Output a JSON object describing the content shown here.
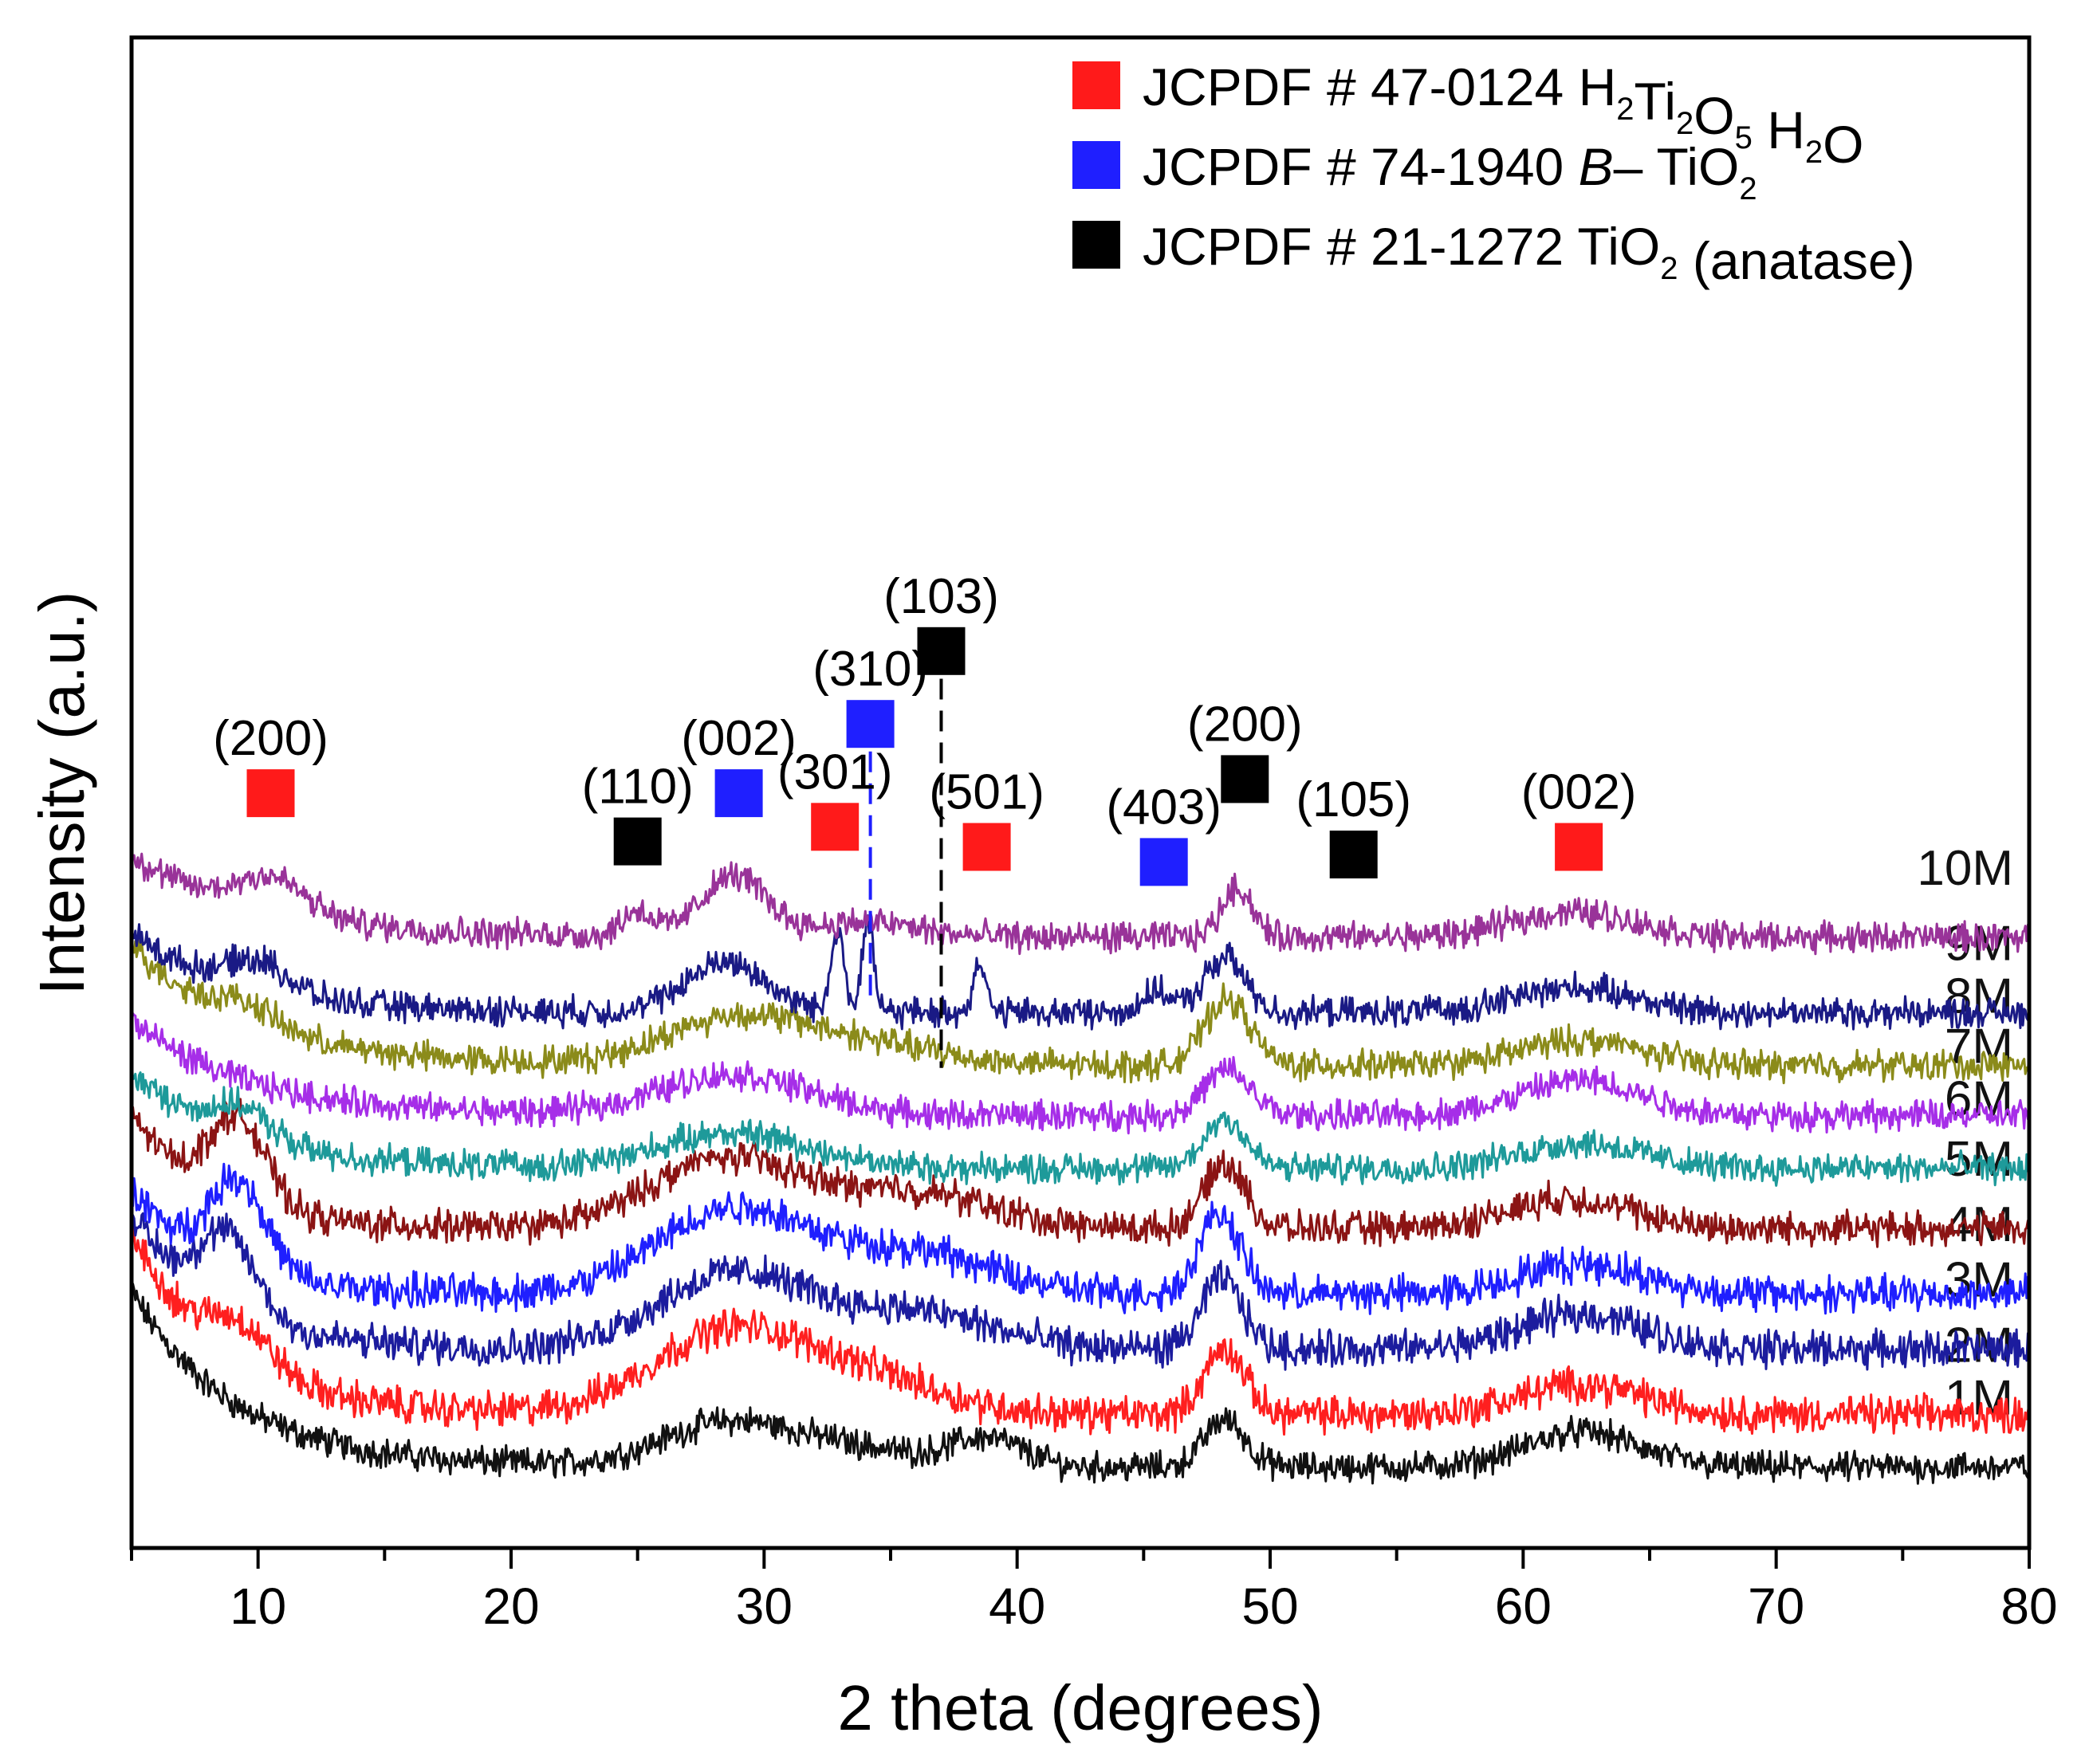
{
  "chart_data": {
    "type": "line",
    "title": "",
    "xlabel": "2 theta (degrees)",
    "ylabel": "Intensity (a.u.)",
    "xlim": [
      5,
      80
    ],
    "xticks": [
      10,
      20,
      30,
      40,
      50,
      60,
      70,
      80
    ],
    "yticks_shown": false,
    "grid": false,
    "legend_position": "top-right",
    "legend": [
      {
        "marker_color": "#ff1a1a",
        "text_color": "#ff1a1a",
        "parts": [
          [
            "JCPDF # 47-0124 H",
            ""
          ],
          [
            "2",
            "sub"
          ],
          [
            "Ti",
            ""
          ],
          [
            "2",
            "sub"
          ],
          [
            "O",
            ""
          ],
          [
            "5",
            "sub"
          ],
          [
            " H",
            ""
          ],
          [
            "2",
            "sub"
          ],
          [
            "O",
            ""
          ]
        ]
      },
      {
        "marker_color": "#1f1fff",
        "text_color": "#1f1fff",
        "parts": [
          [
            "JCPDF # 74-1940 ",
            ""
          ],
          [
            "B",
            "italic"
          ],
          [
            "– TiO",
            ""
          ],
          [
            "2",
            "sub"
          ]
        ]
      },
      {
        "marker_color": "#000000",
        "text_color": "#000000",
        "parts": [
          [
            "JCPDF # 21-1272 TiO",
            ""
          ],
          [
            "2",
            "sub"
          ],
          [
            " (anatase)",
            ""
          ]
        ]
      }
    ],
    "phase_colors": {
      "h2ti2o5": "#ff1a1a",
      "b_tio2": "#1f1fff",
      "anatase": "#000000"
    },
    "peak_markers": [
      {
        "phase": "h2ti2o5",
        "label": "(200)",
        "x": 10.5,
        "level": 2.92
      },
      {
        "phase": "anatase",
        "label": "(110)",
        "x": 25.0,
        "level": 1.96
      },
      {
        "phase": "b_tio2",
        "label": "(002)",
        "x": 29.0,
        "level": 2.92
      },
      {
        "phase": "h2ti2o5",
        "label": "(301)",
        "x": 32.8,
        "level": 2.25
      },
      {
        "phase": "b_tio2",
        "label": "(310)",
        "x": 34.2,
        "level": 4.3
      },
      {
        "phase": "anatase",
        "label": "(103)",
        "x": 37.0,
        "level": 5.75
      },
      {
        "phase": "h2ti2o5",
        "label": "(501)",
        "x": 38.8,
        "level": 1.85
      },
      {
        "phase": "b_tio2",
        "label": "(403)",
        "x": 45.8,
        "level": 1.55
      },
      {
        "phase": "anatase",
        "label": "(200)",
        "x": 49.0,
        "level": 3.2
      },
      {
        "phase": "anatase",
        "label": "(105)",
        "x": 53.3,
        "level": 1.7
      },
      {
        "phase": "h2ti2o5",
        "label": "(002)",
        "x": 62.2,
        "level": 1.85
      }
    ],
    "dashed_reference_lines": [
      {
        "phase": "b_tio2",
        "x": 34.2,
        "from_level": 3.75,
        "to_level": -1.3
      },
      {
        "phase": "anatase",
        "x": 37.0,
        "from_level": 5.2,
        "to_level": -2.55
      }
    ],
    "series": [
      {
        "name": "1M",
        "color": "#111111",
        "offset": 0.0,
        "start": 3.5,
        "decay_tau": 4.0,
        "noise": 0.45,
        "baseline": 0.15,
        "low_peak": [],
        "peaks": [
          [
            28.5,
            0.85,
            2.6
          ],
          [
            33.5,
            0.35,
            2.6
          ],
          [
            38.8,
            0.55,
            1.4
          ],
          [
            48.2,
            0.95,
            0.8
          ],
          [
            62.3,
            0.7,
            2.2
          ]
        ]
      },
      {
        "name": "2M",
        "color": "#ff1f1f",
        "offset": 1.15,
        "start": 3.6,
        "decay_tau": 3.6,
        "noise": 0.55,
        "baseline": 0.05,
        "low_peak": [
          9.3,
          0.8,
          1.2
        ],
        "peaks": [
          [
            28.5,
            1.6,
            3.0
          ],
          [
            34.0,
            0.7,
            3.0
          ],
          [
            48.2,
            1.3,
            0.8
          ],
          [
            62.3,
            0.6,
            2.4
          ]
        ]
      },
      {
        "name": "3M",
        "color": "#1c1c9e",
        "offset": 2.45,
        "start": 2.7,
        "decay_tau": 3.2,
        "noise": 0.55,
        "baseline": 0.05,
        "low_peak": [
          8.8,
          1.5,
          1.1
        ],
        "peaks": [
          [
            28.8,
            1.5,
            3.0
          ],
          [
            36.0,
            0.7,
            3.0
          ],
          [
            48.1,
            1.4,
            0.8
          ],
          [
            62.3,
            0.7,
            2.4
          ]
        ]
      },
      {
        "name": "4M",
        "color": "#1f1fff",
        "offset": 3.55,
        "start": 2.1,
        "decay_tau": 3.0,
        "noise": 0.55,
        "baseline": 0.05,
        "low_peak": [
          9.2,
          1.8,
          1.1
        ],
        "peaks": [
          [
            28.8,
            1.7,
            3.0
          ],
          [
            36.0,
            0.8,
            3.0
          ],
          [
            48.0,
            1.6,
            0.8
          ],
          [
            62.3,
            0.6,
            2.4
          ]
        ]
      },
      {
        "name": "5M",
        "color": "#8b1414",
        "offset": 4.85,
        "start": 2.3,
        "decay_tau": 3.0,
        "noise": 0.5,
        "baseline": 0.05,
        "low_peak": [
          9.2,
          1.7,
          1.1
        ],
        "peaks": [
          [
            28.5,
            1.4,
            3.0
          ],
          [
            36.0,
            0.7,
            3.0
          ],
          [
            48.2,
            1.3,
            0.8
          ],
          [
            61.8,
            0.6,
            2.4
          ]
        ]
      },
      {
        "name": "6M",
        "color": "#1e9a9a",
        "offset": 6.0,
        "start": 1.9,
        "decay_tau": 4.0,
        "noise": 0.45,
        "baseline": 0.1,
        "low_peak": [
          9.3,
          0.6,
          1.2
        ],
        "peaks": [
          [
            28.8,
            0.7,
            3.0
          ],
          [
            48.2,
            1.0,
            0.8
          ],
          [
            62.3,
            0.5,
            2.4
          ]
        ]
      },
      {
        "name": "7M",
        "color": "#a62ee8",
        "offset": 7.05,
        "start": 1.9,
        "decay_tau": 4.5,
        "noise": 0.45,
        "baseline": 0.1,
        "low_peak": [],
        "peaks": [
          [
            28.8,
            0.8,
            3.0
          ],
          [
            48.3,
            0.9,
            0.9
          ],
          [
            62.3,
            0.7,
            2.4
          ]
        ]
      },
      {
        "name": "8M",
        "color": "#8b8b1a",
        "offset": 8.05,
        "start": 2.4,
        "decay_tau": 4.5,
        "noise": 0.45,
        "baseline": 0.1,
        "low_peak": [
          9.5,
          0.4,
          1.2
        ],
        "peaks": [
          [
            28.8,
            0.9,
            2.8
          ],
          [
            34.0,
            0.4,
            3.0
          ],
          [
            48.3,
            1.3,
            0.9
          ],
          [
            62.3,
            0.5,
            2.4
          ]
        ]
      },
      {
        "name": "9M",
        "color": "#1a1a85",
        "offset": 9.15,
        "start": 1.6,
        "decay_tau": 4.0,
        "noise": 0.45,
        "baseline": 0.05,
        "low_peak": [
          10.0,
          0.6,
          1.2
        ],
        "peaks": [
          [
            28.5,
            1.0,
            1.6
          ],
          [
            32.9,
            1.7,
            0.25
          ],
          [
            34.1,
            1.7,
            0.25
          ],
          [
            38.5,
            1.0,
            0.25
          ],
          [
            45.5,
            0.4,
            0.6
          ],
          [
            48.2,
            1.1,
            0.8
          ],
          [
            62.0,
            0.5,
            2.4
          ]
        ]
      },
      {
        "name": "10M",
        "color": "#993399",
        "offset": 10.65,
        "start": 1.6,
        "decay_tau": 5.0,
        "noise": 0.45,
        "baseline": 0.05,
        "low_peak": [
          10.5,
          0.7,
          1.3
        ],
        "peaks": [
          [
            25.0,
            0.5,
            0.6
          ],
          [
            28.8,
            1.2,
            1.3
          ],
          [
            34.0,
            0.3,
            2.0
          ],
          [
            48.7,
            1.0,
            0.6
          ],
          [
            62.0,
            0.5,
            2.4
          ]
        ]
      }
    ]
  }
}
